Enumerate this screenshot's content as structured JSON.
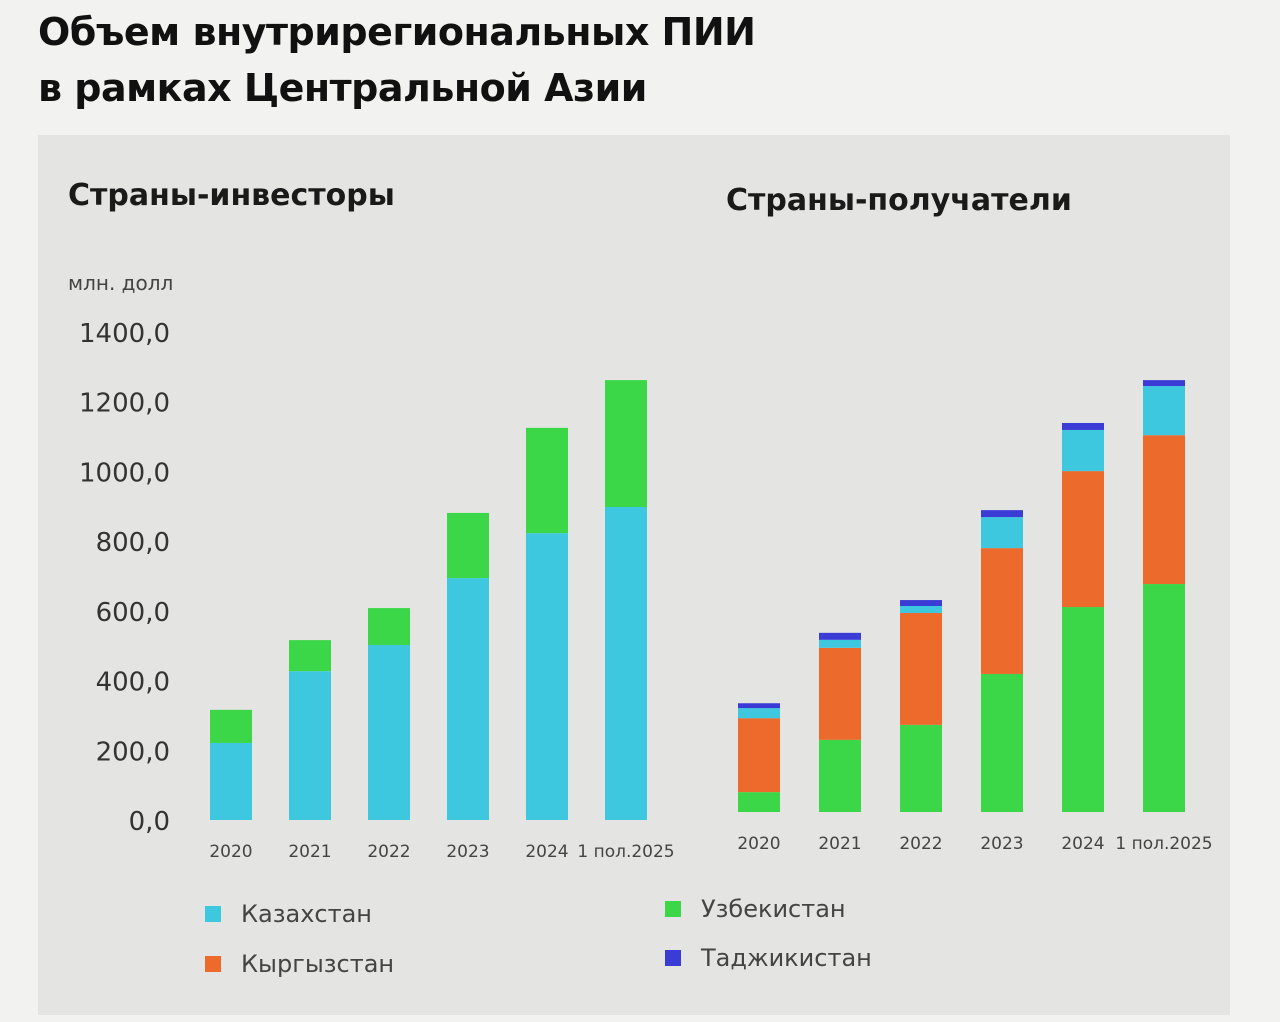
{
  "title_line1": "Объем внутрирегиональных ПИИ",
  "title_line2": "в рамках Центральной Азии",
  "colors": {
    "Казахстан": "#3ec8e0",
    "Узбекистан": "#3cd748",
    "Кыргызстан": "#ec6a2c",
    "Таджикистан": "#3b3bd6"
  },
  "chart_data": [
    {
      "type": "bar",
      "stacked": true,
      "title": "Страны-инвесторы",
      "ylabel": "млн. долл",
      "ylim": [
        0,
        1400
      ],
      "yticks": [
        "0,0",
        "200,0",
        "400,0",
        "600,0",
        "800,0",
        "1000,0",
        "1200,0",
        "1400,0"
      ],
      "categories": [
        "2020",
        "2021",
        "2022",
        "2023",
        "2024",
        "1 пол.2025"
      ],
      "series": [
        {
          "name": "Казахстан",
          "values": [
            221,
            427,
            502,
            694,
            823,
            898
          ]
        },
        {
          "name": "Узбекистан",
          "values": [
            95,
            89,
            106,
            187,
            302,
            364
          ]
        }
      ]
    },
    {
      "type": "bar",
      "stacked": true,
      "title": "Страны-получатели",
      "ylim": [
        0,
        1400
      ],
      "categories": [
        "2020",
        "2021",
        "2022",
        "2023",
        "2024",
        "1 пол.2025"
      ],
      "series": [
        {
          "name": "Узбекистан",
          "values": [
            57,
            207,
            250,
            396,
            588,
            654
          ]
        },
        {
          "name": "Кыргызстан",
          "values": [
            212,
            264,
            321,
            361,
            390,
            427
          ]
        },
        {
          "name": "Казахстан",
          "values": [
            29,
            23,
            20,
            89,
            118,
            141
          ]
        },
        {
          "name": "Таджикистан",
          "values": [
            14,
            20,
            17,
            20,
            20,
            17
          ]
        }
      ]
    }
  ],
  "legend": [
    "Казахстан",
    "Кыргызстан",
    "Узбекистан",
    "Таджикистан"
  ]
}
